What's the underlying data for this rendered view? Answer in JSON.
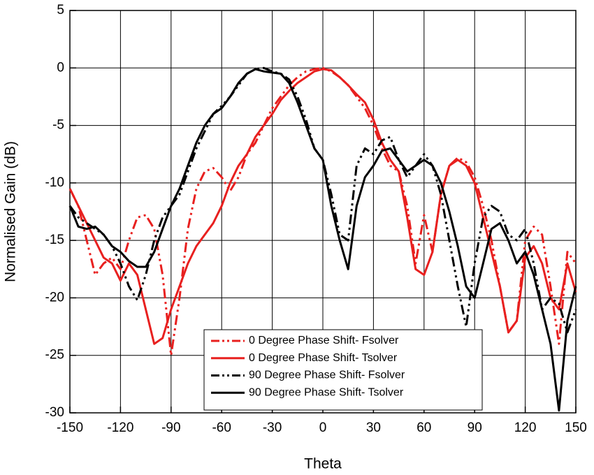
{
  "chart_data": {
    "type": "line",
    "xlabel": "Theta",
    "ylabel": "Normalised Gain (dB)",
    "x": [
      -150,
      -145,
      -140,
      -135,
      -130,
      -125,
      -120,
      -115,
      -110,
      -105,
      -100,
      -95,
      -90,
      -85,
      -80,
      -75,
      -70,
      -65,
      -60,
      -55,
      -50,
      -45,
      -40,
      -35,
      -30,
      -25,
      -20,
      -15,
      -10,
      -5,
      0,
      5,
      10,
      15,
      20,
      25,
      30,
      35,
      40,
      45,
      50,
      55,
      60,
      65,
      70,
      75,
      80,
      85,
      90,
      95,
      100,
      105,
      110,
      115,
      120,
      125,
      130,
      135,
      140,
      145,
      150
    ],
    "xlim": [
      -150,
      150
    ],
    "xticks": [
      -150,
      -120,
      -90,
      -60,
      -30,
      0,
      30,
      60,
      90,
      120,
      150
    ],
    "ylim": [
      -30,
      5
    ],
    "yticks": [
      -30,
      -25,
      -20,
      -15,
      -10,
      -5,
      0,
      5
    ],
    "grid": true,
    "legend_position": "lower right",
    "series": [
      {
        "name": "0 Degree Phase Shift- Fsolver",
        "color": "#e8201f",
        "dash": "dash-dot-dot",
        "values": [
          -10.5,
          -12,
          -15,
          -18,
          -17,
          -16.5,
          -17.5,
          -15,
          -13,
          -12.8,
          -14,
          -18,
          -25,
          -20,
          -14,
          -10.5,
          -9,
          -8.7,
          -9.5,
          -10.7,
          -9.5,
          -7.5,
          -6.5,
          -5,
          -3.5,
          -2.5,
          -1.5,
          -0.8,
          -0.3,
          -0.1,
          0,
          -0.3,
          -0.8,
          -1.5,
          -2.5,
          -3.5,
          -5,
          -7,
          -8.5,
          -9,
          -12,
          -17,
          -12.8,
          -16,
          -11,
          -8.5,
          -7.8,
          -8.2,
          -9.5,
          -12,
          -15,
          -19,
          -23,
          -22,
          -15,
          -13.8,
          -14.5,
          -19,
          -24,
          -16,
          -17
        ]
      },
      {
        "name": "0 Degree Phase Shift- Tsolver",
        "color": "#e8201f",
        "dash": "solid",
        "values": [
          -10.5,
          -12,
          -13.5,
          -15,
          -16.5,
          -17,
          -18.5,
          -17,
          -18,
          -21,
          -24,
          -23.5,
          -21,
          -19,
          -17,
          -15.5,
          -14.5,
          -13.5,
          -12,
          -10,
          -8.5,
          -7.5,
          -6,
          -5,
          -4,
          -2.8,
          -2,
          -1.3,
          -0.8,
          -0.3,
          -0.1,
          -0.2,
          -0.8,
          -1.5,
          -2.3,
          -3,
          -4.5,
          -6.5,
          -8,
          -9,
          -13,
          -17.5,
          -18,
          -16,
          -11,
          -8.5,
          -8,
          -8.5,
          -10,
          -13,
          -16,
          -19,
          -23,
          -22,
          -16.5,
          -15.5,
          -17,
          -20,
          -21,
          -17,
          -19.5
        ]
      },
      {
        "name": "90 Degree Phase Shift- Fsolver",
        "color": "#000000",
        "dash": "dash-dot-dot",
        "values": [
          -12,
          -13,
          -13.5,
          -14,
          -14.5,
          -15.5,
          -17,
          -19,
          -20.2,
          -18,
          -15,
          -13,
          -12,
          -11,
          -9,
          -7,
          -5.5,
          -4,
          -3.3,
          -2.5,
          -1.5,
          -0.5,
          -0.1,
          0,
          -0.3,
          -0.5,
          -1,
          -2.5,
          -4.5,
          -7,
          -8,
          -11,
          -14.5,
          -15,
          -8.5,
          -7,
          -7.5,
          -6.3,
          -6,
          -8,
          -9.5,
          -8.5,
          -7.5,
          -8.5,
          -11,
          -15,
          -19,
          -22.5,
          -17,
          -13,
          -12,
          -12.5,
          -14.5,
          -15,
          -14,
          -17,
          -21,
          -20,
          -20.5,
          -23,
          -21
        ]
      },
      {
        "name": "90 Degree Phase Shift- Tsolver",
        "color": "#000000",
        "dash": "solid",
        "values": [
          -12,
          -13.8,
          -14,
          -13.8,
          -14.5,
          -15.5,
          -16,
          -16.8,
          -17.3,
          -17.3,
          -16,
          -14,
          -12,
          -10.5,
          -8.5,
          -6.5,
          -5,
          -4,
          -3.5,
          -2.5,
          -1.3,
          -0.5,
          -0.1,
          -0.3,
          -0.4,
          -0.5,
          -1.3,
          -3,
          -5,
          -7,
          -8,
          -12,
          -15,
          -17.5,
          -12,
          -9.5,
          -8.5,
          -7.2,
          -7,
          -8,
          -9,
          -8.5,
          -8,
          -8.5,
          -10,
          -12.5,
          -15.5,
          -19,
          -20,
          -17,
          -14,
          -13.5,
          -15,
          -17,
          -16,
          -18,
          -21,
          -24,
          -29.8,
          -22,
          -19
        ]
      }
    ]
  }
}
